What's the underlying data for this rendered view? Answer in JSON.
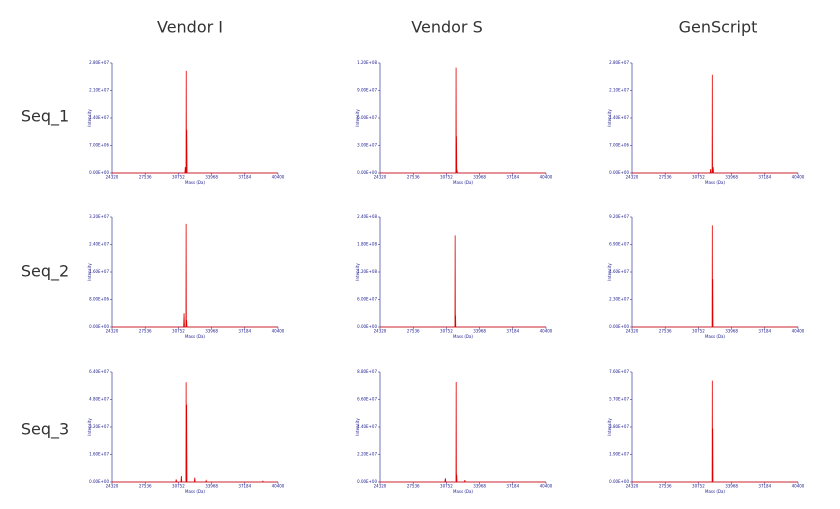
{
  "columns": [
    "Vendor I",
    "Vendor S",
    "GenScript"
  ],
  "rows": [
    "Seq_1",
    "Seq_2",
    "Seq_3"
  ],
  "chart_data": [
    {
      "type": "line",
      "xlabel": "Mass (Da)",
      "ylabel": "Intensity",
      "x": [
        24320,
        31380,
        31420,
        31460,
        31490,
        31510,
        31530,
        31560,
        31590,
        40400
      ],
      "series": [
        {
          "color": "#e00000",
          "values": [
            0,
            0,
            1500000,
            0,
            0,
            26000000,
            0,
            11000000,
            0,
            0
          ]
        }
      ],
      "xlim": [
        24320,
        40400
      ],
      "xticks": [
        24320,
        27536,
        30752,
        33968,
        37184,
        40400
      ],
      "ylim": [
        0,
        28000000
      ],
      "yticks": [
        {
          "value": 0,
          "label": "0.00E+00"
        },
        {
          "value": 7000000,
          "label": "7.00E+06"
        },
        {
          "value": 14000000,
          "label": "1.40E+07"
        },
        {
          "value": 21000000,
          "label": "2.10E+07"
        },
        {
          "value": 28000000,
          "label": "2.80E+07"
        }
      ]
    },
    {
      "type": "line",
      "xlabel": "Mass (Da)",
      "ylabel": "Intensity",
      "x": [
        24320,
        31670,
        31690,
        31710,
        31730,
        31760,
        31790,
        31820,
        40400
      ],
      "series": [
        {
          "color": "#e00000",
          "values": [
            0,
            0,
            115000000,
            0,
            40000000,
            0,
            3000000,
            0,
            0
          ]
        }
      ],
      "xlim": [
        24320,
        40400
      ],
      "xticks": [
        24320,
        27536,
        30752,
        33968,
        37184,
        40400
      ],
      "ylim": [
        0,
        120000000
      ],
      "yticks": [
        {
          "value": 0,
          "label": "0.00E+00"
        },
        {
          "value": 30000000,
          "label": "3.00E+07"
        },
        {
          "value": 60000000,
          "label": "6.00E+07"
        },
        {
          "value": 90000000,
          "label": "9.00E+07"
        },
        {
          "value": 120000000,
          "label": "1.20E+08"
        }
      ]
    },
    {
      "type": "line",
      "xlabel": "Mass (Da)",
      "ylabel": "Intensity",
      "x": [
        24320,
        31900,
        31940,
        31980,
        32080,
        32100,
        32120,
        32180,
        32220,
        40400
      ],
      "series": [
        {
          "color": "#e00000",
          "values": [
            0,
            0,
            1000000,
            0,
            0,
            25000000,
            0,
            1500000,
            0,
            0
          ]
        }
      ],
      "xlim": [
        24320,
        40400
      ],
      "xticks": [
        24320,
        27536,
        30752,
        33968,
        37184,
        40400
      ],
      "ylim": [
        0,
        28000000
      ],
      "yticks": [
        {
          "value": 0,
          "label": "0.00E+00"
        },
        {
          "value": 7000000,
          "label": "7.00E+06"
        },
        {
          "value": 14000000,
          "label": "1.40E+07"
        },
        {
          "value": 21000000,
          "label": "2.10E+07"
        },
        {
          "value": 28000000,
          "label": "2.80E+07"
        }
      ]
    },
    {
      "type": "line",
      "xlabel": "Mass (Da)",
      "ylabel": "Intensity",
      "x": [
        24320,
        31260,
        31300,
        31340,
        31480,
        31500,
        31520,
        31550,
        31580,
        40400
      ],
      "series": [
        {
          "color": "#e00000",
          "values": [
            0,
            0,
            4000000,
            0,
            0,
            30000000,
            0,
            2000000,
            0,
            0
          ]
        }
      ],
      "xlim": [
        24320,
        40400
      ],
      "xticks": [
        24320,
        27536,
        30752,
        33968,
        37184,
        40400
      ],
      "ylim": [
        0,
        32000000
      ],
      "yticks": [
        {
          "value": 0,
          "label": "0.00E+00"
        },
        {
          "value": 8000000,
          "label": "8.00E+06"
        },
        {
          "value": 16000000,
          "label": "1.60E+07"
        },
        {
          "value": 24000000,
          "label": "2.40E+07"
        },
        {
          "value": 32000000,
          "label": "3.20E+07"
        }
      ]
    },
    {
      "type": "line",
      "xlabel": "Mass (Da)",
      "ylabel": "Intensity",
      "x": [
        24320,
        31580,
        31600,
        31620,
        31640,
        31660,
        40400
      ],
      "series": [
        {
          "color": "#e00000",
          "values": [
            0,
            0,
            200000000,
            0,
            25000000,
            0,
            0
          ]
        }
      ],
      "xlim": [
        24320,
        40400
      ],
      "xticks": [
        24320,
        27536,
        30752,
        33968,
        37184,
        40400
      ],
      "ylim": [
        0,
        240000000
      ],
      "yticks": [
        {
          "value": 0,
          "label": "0.00E+00"
        },
        {
          "value": 60000000,
          "label": "6.00E+07"
        },
        {
          "value": 120000000,
          "label": "1.20E+08"
        },
        {
          "value": 180000000,
          "label": "1.80E+08"
        },
        {
          "value": 240000000,
          "label": "2.40E+08"
        }
      ]
    },
    {
      "type": "line",
      "xlabel": "Mass (Da)",
      "ylabel": "Intensity",
      "x": [
        24320,
        32080,
        32100,
        32120,
        32140,
        32160,
        40400
      ],
      "series": [
        {
          "color": "#e00000",
          "values": [
            0,
            0,
            85000000,
            0,
            40000000,
            0,
            0
          ]
        }
      ],
      "xlim": [
        24320,
        40400
      ],
      "xticks": [
        24320,
        27536,
        30752,
        33968,
        37184,
        40400
      ],
      "ylim": [
        0,
        92000000
      ],
      "yticks": [
        {
          "value": 0,
          "label": "0.00E+00"
        },
        {
          "value": 23000000,
          "label": "2.30E+07"
        },
        {
          "value": 46000000,
          "label": "4.60E+07"
        },
        {
          "value": 69000000,
          "label": "6.90E+07"
        },
        {
          "value": 92000000,
          "label": "9.20E+07"
        }
      ]
    },
    {
      "type": "line",
      "xlabel": "Mass (Da)",
      "ylabel": "Intensity",
      "x": [
        24320,
        30500,
        30540,
        30580,
        31000,
        31040,
        31080,
        31480,
        31500,
        31520,
        31550,
        31580,
        32300,
        32340,
        32380,
        33400,
        33440,
        33480,
        38900,
        38940,
        38980,
        40400
      ],
      "series": [
        {
          "color": "#e00000",
          "values": [
            0,
            0,
            1500000,
            0,
            0,
            3500000,
            0,
            0,
            58000000,
            0,
            45000000,
            0,
            0,
            2500000,
            0,
            0,
            800000,
            0,
            0,
            500000,
            0,
            0
          ]
        }
      ],
      "xlim": [
        24320,
        40400
      ],
      "xticks": [
        24320,
        27536,
        30752,
        33968,
        37184,
        40400
      ],
      "ylim": [
        0,
        64000000
      ],
      "yticks": [
        {
          "value": 0,
          "label": "0.00E+00"
        },
        {
          "value": 16000000,
          "label": "1.60E+07"
        },
        {
          "value": 32000000,
          "label": "3.20E+07"
        },
        {
          "value": 48000000,
          "label": "4.80E+07"
        },
        {
          "value": 64000000,
          "label": "6.40E+07"
        }
      ]
    },
    {
      "type": "line",
      "xlabel": "Mass (Da)",
      "ylabel": "Intensity",
      "x": [
        24320,
        30600,
        30650,
        30700,
        31680,
        31700,
        31720,
        31750,
        31780,
        32500,
        32540,
        32580,
        40400
      ],
      "series": [
        {
          "color": "#e00000",
          "values": [
            0,
            0,
            3000000,
            0,
            0,
            80000000,
            0,
            6000000,
            0,
            0,
            1500000,
            0,
            0
          ]
        }
      ],
      "xlim": [
        24320,
        40400
      ],
      "xticks": [
        24320,
        27536,
        30752,
        33968,
        37184,
        40400
      ],
      "ylim": [
        0,
        88000000
      ],
      "yticks": [
        {
          "value": 0,
          "label": "0.00E+00"
        },
        {
          "value": 22000000,
          "label": "2.20E+07"
        },
        {
          "value": 44000000,
          "label": "4.40E+07"
        },
        {
          "value": 66000000,
          "label": "6.60E+07"
        },
        {
          "value": 88000000,
          "label": "8.80E+07"
        }
      ]
    },
    {
      "type": "line",
      "xlabel": "Mass (Da)",
      "ylabel": "Intensity",
      "x": [
        24320,
        32080,
        32100,
        32120,
        32140,
        32160,
        40400
      ],
      "series": [
        {
          "color": "#e00000",
          "values": [
            0,
            0,
            70000000,
            0,
            37000000,
            0,
            0
          ]
        }
      ],
      "xlim": [
        24320,
        40400
      ],
      "xticks": [
        24320,
        27536,
        30752,
        33968,
        37184,
        40400
      ],
      "ylim": [
        0,
        76000000
      ],
      "yticks": [
        {
          "value": 0,
          "label": "0.00E+00"
        },
        {
          "value": 19000000,
          "label": "1.90E+07"
        },
        {
          "value": 38000000,
          "label": "3.80E+07"
        },
        {
          "value": 57000000,
          "label": "5.70E+07"
        },
        {
          "value": 76000000,
          "label": "7.60E+07"
        }
      ]
    }
  ]
}
